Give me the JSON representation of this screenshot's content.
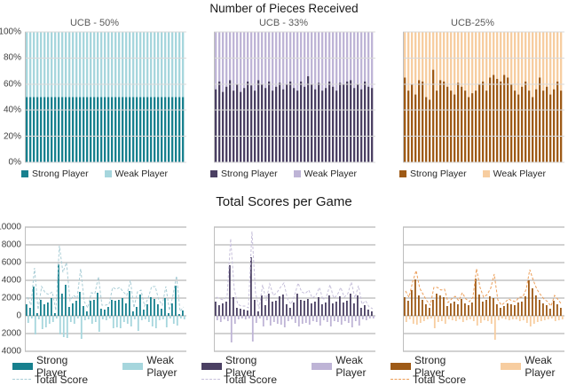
{
  "figure": {
    "top_title": "Number of Pieces Received",
    "bottom_title": "Total Scores per Game"
  },
  "legend": {
    "strong_label": "Strong Player",
    "weak_label": "Weak Player",
    "total_label": "Total Score"
  },
  "themes": {
    "teal": {
      "strong": "#17808E",
      "weak": "#A6D6DD",
      "total": "#A9CDD6"
    },
    "purple": {
      "strong": "#4B4063",
      "weak": "#BEB4D6",
      "total": "#C7C0DB"
    },
    "orange": {
      "strong": "#9E5A16",
      "weak": "#F7CDA0",
      "total": "#EC9E58"
    }
  },
  "colors": {
    "grid_top": "#D9D9D9",
    "grid_bottom": "#A6A6A6",
    "axis": "#BFBFBF"
  },
  "chart_data": [
    {
      "id": "pieces_ucb50",
      "type": "bar",
      "subtype": "stacked-percent",
      "title": "UCB - 50%",
      "theme": "teal",
      "ylim": [
        0,
        100
      ],
      "yticks": [
        {
          "v": 0,
          "label": "0%"
        },
        {
          "v": 20,
          "label": "20%"
        },
        {
          "v": 40,
          "label": "40%"
        },
        {
          "v": 60,
          "label": "60%"
        },
        {
          "v": 80,
          "label": "80%"
        },
        {
          "v": 100,
          "label": "100%"
        }
      ],
      "stack_total": 100,
      "series": [
        {
          "name": "Strong Player",
          "values": [
            50,
            50,
            50,
            50,
            50,
            50,
            50,
            50,
            50,
            50,
            50,
            50,
            50,
            50,
            50,
            50,
            50,
            50,
            50,
            50,
            50,
            50,
            50,
            50,
            50,
            50,
            50,
            50,
            50,
            50,
            50,
            50,
            50,
            50,
            50,
            50,
            50,
            50,
            50,
            50,
            50,
            50,
            50,
            50,
            50
          ]
        },
        {
          "name": "Weak Player",
          "complement_to": 100
        }
      ]
    },
    {
      "id": "pieces_ucb33",
      "type": "bar",
      "subtype": "stacked-percent",
      "title": "UCB - 33%",
      "theme": "purple",
      "ylim": [
        0,
        100
      ],
      "yticks": [
        {
          "v": 0,
          "label": "0%"
        },
        {
          "v": 20,
          "label": "20%"
        },
        {
          "v": 40,
          "label": "40%"
        },
        {
          "v": 60,
          "label": "60%"
        },
        {
          "v": 80,
          "label": "80%"
        },
        {
          "v": 100,
          "label": "100%"
        }
      ],
      "stack_total": 100,
      "series": [
        {
          "name": "Strong Player",
          "values": [
            56,
            62,
            54,
            58,
            63,
            55,
            60,
            54,
            57,
            62,
            59,
            55,
            63,
            60,
            57,
            62,
            55,
            58,
            61,
            56,
            60,
            62,
            57,
            55,
            62,
            58,
            66,
            60,
            56,
            61,
            55,
            57,
            62,
            58,
            55,
            61,
            60,
            62,
            63,
            57,
            60,
            56,
            62,
            58,
            57
          ]
        },
        {
          "name": "Weak Player",
          "complement_to": 100
        }
      ]
    },
    {
      "id": "pieces_ucb25",
      "type": "bar",
      "subtype": "stacked-percent",
      "title": "UCB-25%",
      "theme": "orange",
      "ylim": [
        0,
        100
      ],
      "yticks": [
        {
          "v": 0,
          "label": "0%"
        },
        {
          "v": 20,
          "label": "20%"
        },
        {
          "v": 40,
          "label": "40%"
        },
        {
          "v": 60,
          "label": "60%"
        },
        {
          "v": 80,
          "label": "80%"
        },
        {
          "v": 100,
          "label": "100%"
        }
      ],
      "stack_total": 100,
      "series": [
        {
          "name": "Strong Player",
          "values": [
            65,
            55,
            60,
            52,
            63,
            62,
            50,
            48,
            71,
            55,
            63,
            62,
            58,
            55,
            52,
            61,
            58,
            55,
            50,
            53,
            55,
            60,
            62,
            55,
            65,
            67,
            64,
            62,
            67,
            65,
            60,
            55,
            52,
            58,
            62,
            55,
            50,
            56,
            65,
            55,
            58,
            52,
            56,
            62,
            55
          ]
        },
        {
          "name": "Weak Player",
          "complement_to": 100
        }
      ]
    },
    {
      "id": "scores_ucb50",
      "type": "bar-line",
      "subtype": "scores",
      "title": "",
      "theme": "teal",
      "ylim": [
        -4000,
        10000
      ],
      "yticks": [
        {
          "v": 10000,
          "label": "10000"
        },
        {
          "v": 8000,
          "label": "8000"
        },
        {
          "v": 6000,
          "label": "6000"
        },
        {
          "v": 4000,
          "label": "4000"
        },
        {
          "v": 2000,
          "label": "2000"
        },
        {
          "v": 0,
          "label": "0"
        },
        {
          "v": -2000,
          "label": "2000"
        },
        {
          "v": -4000,
          "label": "4000"
        }
      ],
      "series": [
        {
          "name": "Strong Player",
          "values": [
            1300,
            900,
            3300,
            300,
            1800,
            1300,
            1500,
            2000,
            300,
            5800,
            2500,
            3500,
            1000,
            1400,
            1700,
            2700,
            1100,
            500,
            1700,
            1800,
            2600,
            800,
            700,
            1000,
            1800,
            1700,
            1800,
            2000,
            1400,
            2800,
            500,
            1000,
            2400,
            700,
            1300,
            2100,
            1900,
            1300,
            800,
            2000,
            300,
            1400,
            3400,
            200,
            600
          ]
        },
        {
          "name": "Weak Player",
          "values": [
            -800,
            -300,
            -2100,
            -400,
            -1500,
            -1300,
            -900,
            -700,
            -300,
            -2100,
            -2400,
            -2500,
            -700,
            -900,
            -300,
            -2600,
            -500,
            -400,
            -900,
            -700,
            -1800,
            -400,
            -500,
            -300,
            -1400,
            -1300,
            -1400,
            -700,
            -900,
            -1200,
            -400,
            -1700,
            -500,
            -400,
            -700,
            -1200,
            -1400,
            -500,
            -400,
            -1300,
            -300,
            -900,
            -1100,
            -300,
            -400
          ]
        },
        {
          "name": "Total Score",
          "type": "dashed-line",
          "values": [
            2100,
            1200,
            5400,
            700,
            3300,
            2600,
            2400,
            2700,
            600,
            7900,
            4900,
            6000,
            1700,
            2300,
            2000,
            5300,
            1600,
            900,
            2600,
            2500,
            4400,
            1200,
            1200,
            1300,
            3200,
            3000,
            3200,
            2700,
            2300,
            4000,
            900,
            2700,
            2900,
            1100,
            2000,
            3300,
            3300,
            1800,
            1200,
            3300,
            600,
            2300,
            4500,
            500,
            1000
          ]
        }
      ]
    },
    {
      "id": "scores_ucb33",
      "type": "bar-line",
      "subtype": "scores",
      "title": "",
      "theme": "purple",
      "ylim": [
        -4000,
        10000
      ],
      "yticks": [],
      "series": [
        {
          "name": "Strong Player",
          "values": [
            1600,
            1200,
            1400,
            1600,
            5700,
            2100,
            900,
            800,
            700,
            600,
            6600,
            1800,
            500,
            2300,
            1200,
            2500,
            1600,
            1700,
            2200,
            2400,
            1300,
            900,
            1500,
            2500,
            1800,
            1700,
            1900,
            1400,
            1600,
            2100,
            1300,
            1500,
            2300,
            1400,
            1600,
            2200,
            1500,
            1700,
            2500,
            1400,
            2300,
            900,
            1200,
            700,
            500
          ]
        },
        {
          "name": "Weak Player",
          "values": [
            -500,
            -700,
            -400,
            -600,
            -3000,
            -900,
            -400,
            -300,
            -400,
            -300,
            -2900,
            -800,
            -300,
            -1200,
            -500,
            -1100,
            -700,
            -900,
            -1000,
            -1300,
            -600,
            -400,
            -800,
            -1200,
            -900,
            -800,
            -1000,
            -600,
            -700,
            -1100,
            -500,
            -700,
            -1200,
            -600,
            -700,
            -1000,
            -600,
            -800,
            -1300,
            -600,
            -1100,
            -400,
            -500,
            -300,
            -300
          ]
        },
        {
          "name": "Total Score",
          "type": "dashed-line",
          "values": [
            2100,
            1900,
            1800,
            2200,
            8700,
            3000,
            1300,
            1100,
            1100,
            900,
            9500,
            2600,
            800,
            3500,
            1700,
            3600,
            2300,
            2600,
            3200,
            3700,
            1900,
            1300,
            2300,
            3700,
            2700,
            2500,
            2900,
            2000,
            2300,
            3200,
            1800,
            2200,
            3500,
            2000,
            2300,
            3200,
            2100,
            2500,
            3800,
            2000,
            3400,
            1300,
            1700,
            1000,
            800
          ]
        }
      ]
    },
    {
      "id": "scores_ucb25",
      "type": "bar-line",
      "subtype": "scores",
      "title": "",
      "theme": "orange",
      "ylim": [
        -4000,
        10000
      ],
      "yticks": [],
      "series": [
        {
          "name": "Strong Player",
          "values": [
            2100,
            1700,
            2900,
            4100,
            2300,
            1800,
            1300,
            900,
            1800,
            2500,
            2300,
            2100,
            1100,
            1400,
            1600,
            1300,
            1900,
            1400,
            1200,
            1500,
            4200,
            2400,
            1600,
            1800,
            2200,
            2000,
            1300,
            900,
            1100,
            1400,
            1300,
            1200,
            1500,
            1600,
            2200,
            4000,
            3100,
            2300,
            1800,
            1400,
            1200,
            800,
            1700,
            1300,
            900
          ]
        },
        {
          "name": "Weak Player",
          "values": [
            -700,
            -400,
            -900,
            -1000,
            -800,
            -600,
            -400,
            -300,
            -1400,
            -700,
            -600,
            -900,
            -400,
            -500,
            -600,
            -400,
            -700,
            -500,
            -400,
            -600,
            -1100,
            -800,
            -500,
            -600,
            -900,
            -2700,
            -500,
            -300,
            -400,
            -500,
            -400,
            -400,
            -600,
            -500,
            -800,
            -1200,
            -900,
            -700,
            -600,
            -500,
            -400,
            -300,
            -600,
            -500,
            -400
          ]
        },
        {
          "name": "Total Score",
          "type": "dashed-line",
          "values": [
            2800,
            2100,
            3800,
            5100,
            3100,
            2400,
            1700,
            1200,
            3200,
            3200,
            2900,
            3000,
            1500,
            1900,
            2200,
            1700,
            2600,
            1900,
            1600,
            2100,
            5300,
            3200,
            2100,
            2400,
            3100,
            4700,
            1800,
            1200,
            1500,
            1900,
            1700,
            1600,
            2100,
            2100,
            3000,
            5200,
            4000,
            3000,
            2400,
            1900,
            1600,
            1100,
            2300,
            1800,
            1300
          ]
        }
      ]
    }
  ]
}
